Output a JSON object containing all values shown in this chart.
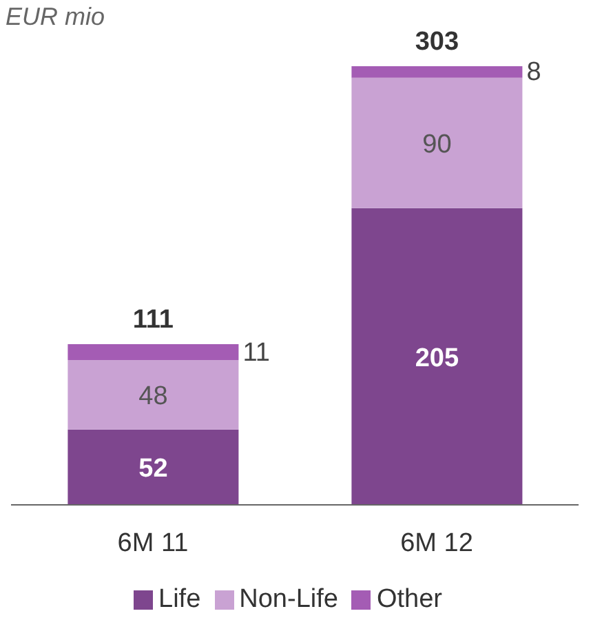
{
  "chart_data": {
    "type": "bar",
    "ylabel": "EUR mio",
    "categories": [
      "6M 11",
      "6M 12"
    ],
    "stacked": true,
    "data_labels": true,
    "legend": "bottom",
    "grid": false,
    "series": [
      {
        "name": "Life",
        "color": "#7e468e",
        "values": [
          52,
          205
        ]
      },
      {
        "name": "Non-Life",
        "color": "#c9a2d3",
        "values": [
          48,
          90
        ]
      },
      {
        "name": "Other",
        "color": "#a45cb4",
        "values": [
          11,
          8
        ]
      }
    ],
    "totals": [
      "111",
      "303"
    ]
  }
}
